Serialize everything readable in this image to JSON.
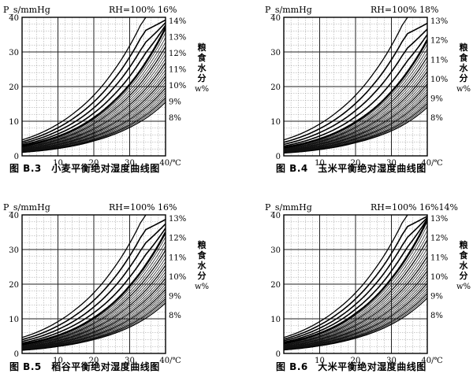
{
  "chart_data": [
    {
      "type": "line",
      "caption": "图 B.3　小麦平衡绝对湿度曲线图",
      "ylabel": "P_s/mmHg",
      "xlim": [
        0,
        40
      ],
      "ylim": [
        0,
        40
      ],
      "x_ticks": [
        "10",
        "20",
        "30",
        "40/℃"
      ],
      "y_ticks": [
        "0",
        "10",
        "20",
        "30",
        "40"
      ],
      "rh_label": "RH=100% 16%",
      "side_label": [
        "粮",
        "食",
        "水",
        "分",
        "w%"
      ],
      "moisture_labels": [
        "14%",
        "13%",
        "12%",
        "11%",
        "10%",
        "9%",
        "8%"
      ],
      "series": [
        {
          "values": [
            [
              0,
              4.6
            ],
            [
              5,
              6.5
            ],
            [
              10,
              9.2
            ],
            [
              15,
              12.8
            ],
            [
              20,
              17.5
            ],
            [
              25,
              23.8
            ],
            [
              30,
              31.8
            ],
            [
              33,
              37.7
            ],
            [
              34.5,
              40
            ]
          ]
        },
        {
          "values": [
            [
              0,
              2.8
            ],
            [
              10,
              5.6
            ],
            [
              20,
              11.0
            ],
            [
              25,
              15.2
            ],
            [
              30,
              20.6
            ],
            [
              35,
              27.8
            ],
            [
              40,
              37.0
            ]
          ]
        },
        {
          "values": [
            [
              0,
              1.0
            ],
            [
              10,
              2.1
            ],
            [
              20,
              4.3
            ],
            [
              30,
              8.2
            ],
            [
              35,
              11.2
            ],
            [
              40,
              15.5
            ]
          ]
        }
      ]
    },
    {
      "type": "line",
      "caption": "图 B.4　玉米平衡绝对湿度曲线图",
      "ylabel": "P_s/mmHg",
      "xlim": [
        0,
        40
      ],
      "ylim": [
        0,
        40
      ],
      "x_ticks": [
        "10",
        "20",
        "30",
        "40/℃"
      ],
      "y_ticks": [
        "0",
        "10",
        "20",
        "30",
        "40"
      ],
      "rh_label": "RH=100% 18%",
      "side_label": [
        "粮",
        "食",
        "水",
        "分",
        "w%"
      ],
      "moisture_labels": [
        "13%",
        "12%",
        "11%",
        "10%",
        "9%",
        "8%"
      ],
      "series": [
        {
          "values": [
            [
              0,
              4.6
            ],
            [
              5,
              6.5
            ],
            [
              10,
              9.2
            ],
            [
              15,
              12.8
            ],
            [
              20,
              17.5
            ],
            [
              25,
              23.8
            ],
            [
              30,
              31.8
            ],
            [
              33,
              37.7
            ],
            [
              34.5,
              40
            ]
          ]
        },
        {
          "values": [
            [
              0,
              2.4
            ],
            [
              10,
              4.9
            ],
            [
              20,
              9.8
            ],
            [
              30,
              18.5
            ],
            [
              35,
              25.0
            ],
            [
              40,
              33.5
            ]
          ]
        },
        {
          "values": [
            [
              0,
              0.8
            ],
            [
              10,
              1.8
            ],
            [
              20,
              3.8
            ],
            [
              30,
              7.2
            ],
            [
              35,
              10.0
            ],
            [
              40,
              14.0
            ]
          ]
        }
      ]
    },
    {
      "type": "line",
      "caption": "图 B.5　稻谷平衡绝对湿度曲线图",
      "ylabel": "P_s/mmHg",
      "xlim": [
        0,
        40
      ],
      "ylim": [
        0,
        40
      ],
      "x_ticks": [
        "10",
        "20",
        "30",
        "40/℃"
      ],
      "y_ticks": [
        "0",
        "10",
        "20",
        "30",
        "40"
      ],
      "rh_label": "RH=100% 16%",
      "side_label": [
        "粮",
        "食",
        "水",
        "分",
        "w%"
      ],
      "moisture_labels": [
        "13%",
        "12%",
        "11%",
        "10%",
        "9%",
        "8%"
      ],
      "series": [
        {
          "values": [
            [
              0,
              4.6
            ],
            [
              5,
              6.5
            ],
            [
              10,
              9.2
            ],
            [
              15,
              12.8
            ],
            [
              20,
              17.5
            ],
            [
              25,
              23.8
            ],
            [
              30,
              31.8
            ],
            [
              33,
              37.7
            ],
            [
              34.5,
              40
            ]
          ]
        },
        {
          "values": [
            [
              0,
              2.6
            ],
            [
              10,
              5.2
            ],
            [
              20,
              10.3
            ],
            [
              30,
              19.5
            ],
            [
              35,
              26.3
            ],
            [
              40,
              35.0
            ]
          ]
        },
        {
          "values": [
            [
              0,
              0.9
            ],
            [
              10,
              2.0
            ],
            [
              20,
              4.0
            ],
            [
              30,
              7.6
            ],
            [
              35,
              10.5
            ],
            [
              40,
              14.6
            ]
          ]
        }
      ]
    },
    {
      "type": "line",
      "caption": "图 B.6　大米平衡绝对湿度曲线图",
      "ylabel": "P_s/mmHg",
      "xlim": [
        0,
        40
      ],
      "ylim": [
        0,
        40
      ],
      "x_ticks": [
        "10",
        "20",
        "30",
        "40/℃"
      ],
      "y_ticks": [
        "0",
        "10",
        "20",
        "30",
        "40"
      ],
      "rh_label": "RH=100% 16%14%",
      "side_label": [
        "粮",
        "食",
        "水",
        "分",
        "w%"
      ],
      "moisture_labels": [
        "13%",
        "12%",
        "11%",
        "10%",
        "9%",
        "8%"
      ],
      "series": [
        {
          "values": [
            [
              0,
              4.6
            ],
            [
              5,
              6.5
            ],
            [
              10,
              9.2
            ],
            [
              15,
              12.8
            ],
            [
              20,
              17.5
            ],
            [
              25,
              23.8
            ],
            [
              30,
              31.8
            ],
            [
              33,
              37.7
            ],
            [
              34.5,
              40
            ]
          ]
        },
        {
          "values": [
            [
              0,
              2.9
            ],
            [
              10,
              5.8
            ],
            [
              20,
              11.5
            ],
            [
              30,
              21.6
            ],
            [
              35,
              29.0
            ],
            [
              40,
              38.5
            ]
          ]
        },
        {
          "values": [
            [
              0,
              1.0
            ],
            [
              10,
              2.2
            ],
            [
              20,
              4.4
            ],
            [
              30,
              8.4
            ],
            [
              35,
              11.6
            ],
            [
              40,
              16.0
            ]
          ]
        }
      ]
    }
  ]
}
